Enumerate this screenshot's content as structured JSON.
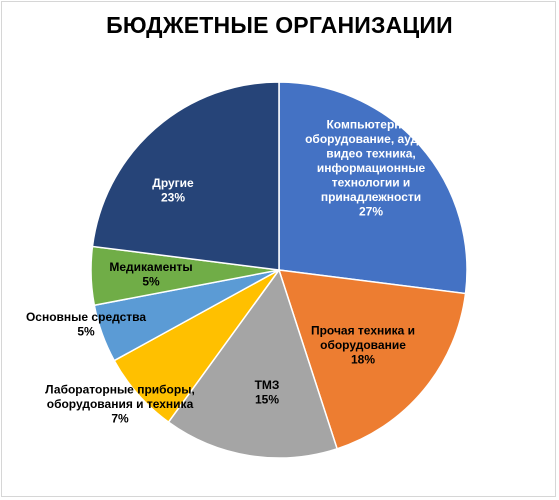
{
  "chart_data": {
    "type": "pie",
    "title": "БЮДЖЕТНЫЕ ОРГАНИЗАЦИИ",
    "start_angle_deg": 0,
    "direction": "clockwise",
    "slices": [
      {
        "name": "Компьютерное оборудование, аудио-видео техника, информационные технологии и принадлежности",
        "value": 27,
        "label_lines": [
          "Компьютерное",
          "оборудование, аудио-",
          "видео техника,",
          "информационные",
          "технологии и",
          "принадлежности",
          "27%"
        ],
        "color": "#4472C4",
        "text_color": "#ffffff"
      },
      {
        "name": "Прочая техника и оборудование",
        "value": 18,
        "label_lines": [
          "Прочая техника и",
          "оборудование",
          "18%"
        ],
        "color": "#ED7D31",
        "text_color": "#000000"
      },
      {
        "name": "ТМЗ",
        "value": 15,
        "label_lines": [
          "ТМЗ",
          "15%"
        ],
        "color": "#A5A5A5",
        "text_color": "#000000"
      },
      {
        "name": "Лабораторные приборы, оборудования и техника",
        "value": 7,
        "label_lines": [
          "Лабораторные приборы,",
          "оборудования и техника",
          "7%"
        ],
        "color": "#FFC000",
        "text_color": "#000000"
      },
      {
        "name": "Основные средства",
        "value": 5,
        "label_lines": [
          "Основные средства",
          "5%"
        ],
        "color": "#5B9BD5",
        "text_color": "#000000"
      },
      {
        "name": "Медикаменты",
        "value": 5,
        "label_lines": [
          "Медикаменты",
          "5%"
        ],
        "color": "#70AD47",
        "text_color": "#000000"
      },
      {
        "name": "Другие",
        "value": 23,
        "label_lines": [
          "Другие",
          "23%"
        ],
        "color": "#264478",
        "text_color": "#ffffff"
      }
    ]
  }
}
